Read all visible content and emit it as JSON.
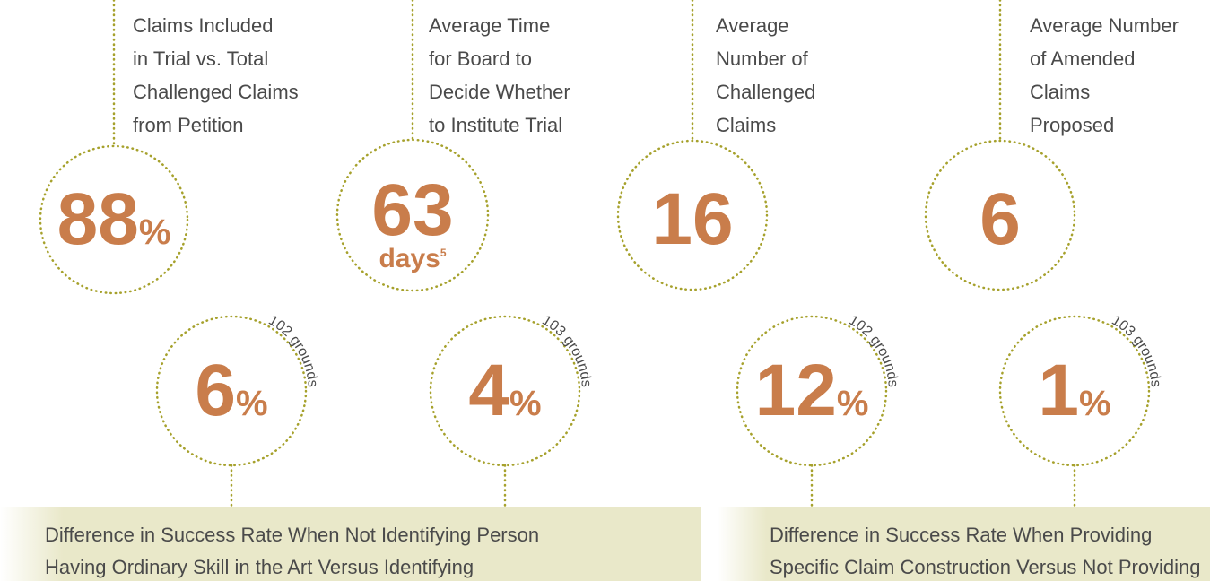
{
  "top": [
    {
      "label": [
        "Claims Included",
        "in Trial vs. Total",
        "Challenged Claims",
        "from Petition"
      ],
      "value": "88",
      "unit": "%"
    },
    {
      "label": [
        "Average Time",
        "for Board to",
        "Decide Whether",
        "to Institute Trial"
      ],
      "value": "63",
      "unit": "days",
      "note": "5"
    },
    {
      "label": [
        "Average",
        "Number of",
        "Challenged",
        "Claims"
      ],
      "value": "16"
    },
    {
      "label": [
        "Average Number",
        "of Amended",
        "Claims",
        "Proposed"
      ],
      "value": "6"
    }
  ],
  "bottom": [
    {
      "value": "6",
      "unit": "%",
      "side": "102 grounds"
    },
    {
      "value": "4",
      "unit": "%",
      "side": "103 grounds"
    },
    {
      "value": "12",
      "unit": "%",
      "side": "102 grounds"
    },
    {
      "value": "1",
      "unit": "%",
      "side": "103 grounds"
    }
  ],
  "boxes": [
    {
      "lines": [
        "Difference in Success Rate When Not Identifying Person",
        "Having Ordinary Skill in the Art Versus Identifying"
      ]
    },
    {
      "lines": [
        "Difference in Success Rate When Providing",
        "Specific Claim Construction Versus Not Providing"
      ]
    }
  ]
}
